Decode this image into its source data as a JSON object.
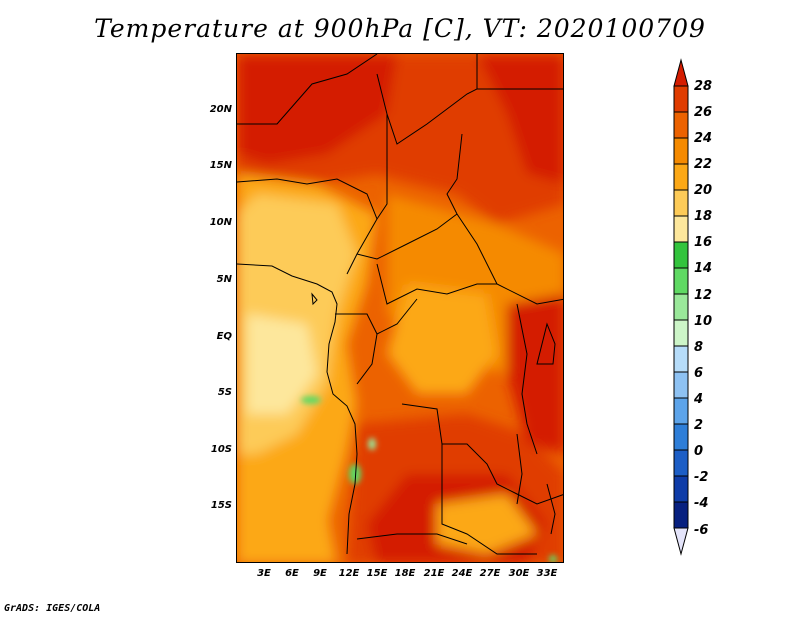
{
  "title": "Temperature at 900hPa [C], VT: 2020100709",
  "credit": "GrADS: IGES/COLA",
  "lat_labels": [
    "20N",
    "15N",
    "10N",
    "5N",
    "EQ",
    "5S",
    "10S",
    "15S"
  ],
  "lon_labels": [
    "3E",
    "6E",
    "9E",
    "12E",
    "15E",
    "18E",
    "21E",
    "24E",
    "27E",
    "30E",
    "33E"
  ],
  "colorbar": {
    "labels": [
      "28",
      "26",
      "24",
      "22",
      "20",
      "18",
      "16",
      "14",
      "12",
      "10",
      "8",
      "6",
      "4",
      "2",
      "0",
      "-2",
      "-4",
      "-6"
    ],
    "colors": [
      "#d41c00",
      "#e03c00",
      "#ec6200",
      "#f58a00",
      "#fca816",
      "#fdcb58",
      "#fde79c",
      "#33c43d",
      "#5fd963",
      "#9ae89a",
      "#cdf5c8",
      "#b6dcf9",
      "#8ec2f3",
      "#5da4ea",
      "#2e7ed8",
      "#1c5ec6",
      "#0e3ca8",
      "#072080",
      "#e4e4fa"
    ]
  },
  "fields": {
    "palette": [
      "#fde79c",
      "#fdcb58",
      "#fca816",
      "#f58a00",
      "#ec6200",
      "#e03c00",
      "#d41c00"
    ],
    "green": "#5fd963"
  }
}
